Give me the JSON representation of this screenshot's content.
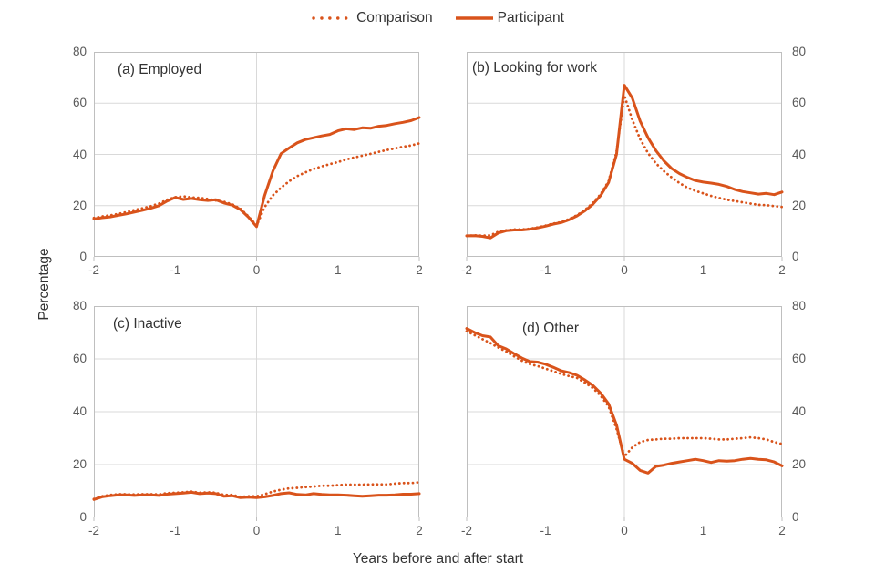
{
  "figure": {
    "y_axis_title": "Percentage",
    "x_axis_title": "Years before and after start"
  },
  "legend": {
    "items": [
      {
        "label": "Comparison",
        "style": "dotted"
      },
      {
        "label": "Participant",
        "style": "solid"
      }
    ]
  },
  "colors": {
    "line": "#D9531B",
    "grid": "#D9D9D9",
    "border": "#BFBFBF",
    "tick_text": "#595959",
    "title_text": "#333333"
  },
  "chart_data": [
    {
      "id": "a",
      "type": "line",
      "title": "(a) Employed",
      "xlabel": "Years before and after start",
      "ylabel": "Percentage",
      "xlim": [
        -2,
        2
      ],
      "ylim": [
        0,
        80
      ],
      "xticks": [
        -2,
        -1,
        0,
        1,
        2
      ],
      "yticks": [
        0,
        20,
        40,
        60,
        80
      ],
      "y_axis_side": "left",
      "x_start": -2,
      "x_step": 0.1,
      "series": [
        {
          "name": "Comparison",
          "style": "dotted",
          "values": [
            15.2,
            15.8,
            16.2,
            16.8,
            17.5,
            18.3,
            19.0,
            19.8,
            20.8,
            22.3,
            23.3,
            23.6,
            23.2,
            23.0,
            22.6,
            22.0,
            21.5,
            20.5,
            18.8,
            15.8,
            12.2,
            19.5,
            24.0,
            27.0,
            29.5,
            31.5,
            33.0,
            34.3,
            35.3,
            36.2,
            37.0,
            38.0,
            38.8,
            39.5,
            40.2,
            41.0,
            41.7,
            42.3,
            43.0,
            43.5,
            44.3
          ]
        },
        {
          "name": "Participant",
          "style": "solid",
          "values": [
            14.8,
            15.3,
            15.6,
            16.2,
            16.8,
            17.5,
            18.2,
            19.0,
            20.0,
            21.8,
            23.2,
            22.4,
            22.8,
            22.3,
            22.0,
            22.3,
            21.0,
            20.2,
            18.5,
            15.5,
            11.8,
            24.0,
            33.5,
            40.3,
            42.5,
            44.5,
            45.8,
            46.5,
            47.2,
            47.8,
            49.2,
            50.0,
            49.7,
            50.4,
            50.2,
            51.0,
            51.3,
            52.0,
            52.5,
            53.2,
            54.4
          ]
        }
      ]
    },
    {
      "id": "b",
      "type": "line",
      "title": "(b) Looking for work",
      "xlabel": "Years before and after start",
      "ylabel": "Percentage",
      "xlim": [
        -2,
        2
      ],
      "ylim": [
        0,
        80
      ],
      "xticks": [
        -2,
        -1,
        0,
        1,
        2
      ],
      "yticks": [
        0,
        20,
        40,
        60,
        80
      ],
      "y_axis_side": "right",
      "x_start": -2,
      "x_step": 0.1,
      "series": [
        {
          "name": "Comparison",
          "style": "dotted",
          "values": [
            8.2,
            8.4,
            8.3,
            8.4,
            9.8,
            10.4,
            10.7,
            10.7,
            11.0,
            11.5,
            12.2,
            13.0,
            13.6,
            14.8,
            16.3,
            18.3,
            21.0,
            24.5,
            29.5,
            41.0,
            63.0,
            53.5,
            46.0,
            40.5,
            36.5,
            33.5,
            31.0,
            28.8,
            27.0,
            25.8,
            24.8,
            23.8,
            23.0,
            22.3,
            21.8,
            21.3,
            20.8,
            20.3,
            20.2,
            19.8,
            19.5
          ]
        },
        {
          "name": "Participant",
          "style": "solid",
          "values": [
            8.2,
            8.3,
            8.0,
            7.4,
            9.3,
            10.2,
            10.5,
            10.5,
            10.8,
            11.3,
            12.0,
            12.8,
            13.4,
            14.5,
            16.0,
            18.0,
            20.5,
            24.0,
            29.0,
            40.0,
            67.0,
            62.0,
            53.0,
            46.5,
            41.5,
            37.5,
            34.5,
            32.5,
            31.0,
            29.8,
            29.2,
            28.8,
            28.3,
            27.5,
            26.3,
            25.5,
            25.0,
            24.5,
            24.8,
            24.3,
            25.3
          ]
        }
      ]
    },
    {
      "id": "c",
      "type": "line",
      "title": "(c) Inactive",
      "xlabel": "Years before and after start",
      "ylabel": "Percentage",
      "xlim": [
        -2,
        2
      ],
      "ylim": [
        0,
        80
      ],
      "xticks": [
        -2,
        -1,
        0,
        1,
        2
      ],
      "yticks": [
        0,
        20,
        40,
        60,
        80
      ],
      "y_axis_side": "left",
      "x_start": -2,
      "x_step": 0.1,
      "series": [
        {
          "name": "Comparison",
          "style": "dotted",
          "values": [
            7.0,
            8.0,
            8.5,
            8.8,
            8.8,
            8.7,
            8.8,
            8.8,
            8.7,
            9.2,
            9.3,
            9.5,
            9.8,
            9.3,
            9.5,
            9.3,
            8.5,
            8.5,
            7.8,
            8.0,
            8.0,
            8.8,
            9.8,
            10.5,
            11.0,
            11.2,
            11.5,
            11.7,
            12.0,
            12.0,
            12.2,
            12.4,
            12.4,
            12.4,
            12.5,
            12.5,
            12.5,
            12.8,
            13.0,
            13.0,
            13.3
          ]
        },
        {
          "name": "Participant",
          "style": "solid",
          "values": [
            6.8,
            7.8,
            8.2,
            8.5,
            8.5,
            8.3,
            8.5,
            8.5,
            8.3,
            8.8,
            9.0,
            9.2,
            9.5,
            9.0,
            9.2,
            9.0,
            8.0,
            8.2,
            7.5,
            7.7,
            7.5,
            7.8,
            8.3,
            9.0,
            9.3,
            8.7,
            8.5,
            9.0,
            8.7,
            8.5,
            8.5,
            8.4,
            8.2,
            8.0,
            8.2,
            8.4,
            8.4,
            8.5,
            8.8,
            8.8,
            9.0
          ]
        }
      ]
    },
    {
      "id": "d",
      "type": "line",
      "title": "(d) Other",
      "xlabel": "Years before and after start",
      "ylabel": "Percentage",
      "xlim": [
        -2,
        2
      ],
      "ylim": [
        0,
        80
      ],
      "xticks": [
        -2,
        -1,
        0,
        1,
        2
      ],
      "yticks": [
        0,
        20,
        40,
        60,
        80
      ],
      "y_axis_side": "right",
      "x_start": -2,
      "x_step": 0.1,
      "series": [
        {
          "name": "Comparison",
          "style": "dotted",
          "values": [
            70.5,
            69.0,
            67.5,
            66.0,
            64.3,
            62.8,
            61.0,
            59.3,
            58.0,
            57.3,
            56.3,
            55.3,
            54.3,
            53.5,
            52.8,
            51.0,
            49.0,
            46.0,
            42.0,
            33.5,
            23.0,
            26.5,
            28.5,
            29.3,
            29.5,
            29.8,
            29.8,
            30.0,
            30.0,
            30.0,
            30.0,
            29.8,
            29.5,
            29.5,
            29.8,
            30.0,
            30.3,
            30.0,
            29.5,
            28.5,
            27.8
          ]
        },
        {
          "name": "Participant",
          "style": "solid",
          "values": [
            71.5,
            70.0,
            68.8,
            68.3,
            65.0,
            63.8,
            62.0,
            60.3,
            59.0,
            58.8,
            58.0,
            56.8,
            55.5,
            54.8,
            53.8,
            52.0,
            50.0,
            47.0,
            43.0,
            35.0,
            22.0,
            20.5,
            17.8,
            16.8,
            19.3,
            19.8,
            20.5,
            21.0,
            21.5,
            22.0,
            21.5,
            20.8,
            21.5,
            21.3,
            21.5,
            22.0,
            22.3,
            22.0,
            21.8,
            21.0,
            19.5
          ]
        }
      ]
    }
  ]
}
